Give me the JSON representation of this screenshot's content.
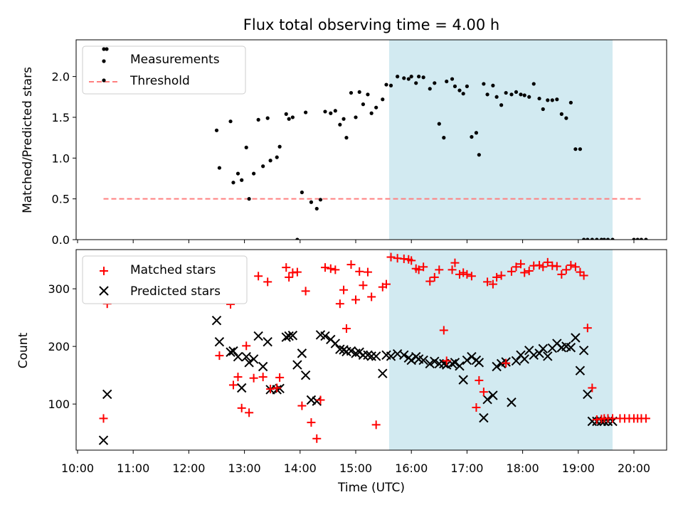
{
  "title": "Flux total observing time = 4.00 h",
  "colors": {
    "measurement": "#000000",
    "threshold": "#ff7f7f",
    "matched": "#ff0000",
    "predicted": "#000000",
    "highlight": "#add8e6"
  },
  "chart_data": [
    {
      "type": "scatter",
      "panel": "top",
      "ylabel": "Matched/Predicted stars",
      "xlabel": "",
      "ylim": [
        0,
        2.45
      ],
      "yticks": [
        0.0,
        0.5,
        1.0,
        1.5,
        2.0
      ],
      "ytick_labels": [
        "0.0",
        "0.5",
        "1.0",
        "1.5",
        "2.0"
      ],
      "legend": {
        "placement": "top-left",
        "entries": [
          "Measurements",
          "Threshold"
        ]
      },
      "highlight_span": {
        "from": "15:36",
        "to": "19:37"
      },
      "threshold": {
        "value": 0.5,
        "from": "10:28",
        "to": "20:08"
      },
      "series": [
        {
          "name": "Measurements",
          "x": [
            "12:30",
            "12:33",
            "12:45",
            "12:48",
            "12:53",
            "12:57",
            "13:02",
            "13:05",
            "13:10",
            "13:15",
            "13:20",
            "13:25",
            "13:28",
            "13:35",
            "13:38",
            "13:45",
            "13:48",
            "13:52",
            "13:57",
            "14:02",
            "14:06",
            "14:12",
            "14:18",
            "14:22",
            "14:27",
            "14:33",
            "14:38",
            "14:43",
            "14:47",
            "14:50",
            "14:55",
            "15:00",
            "15:04",
            "15:08",
            "15:13",
            "15:17",
            "15:22",
            "15:29",
            "15:33",
            "15:38",
            "15:45",
            "15:52",
            "15:57",
            "16:00",
            "16:05",
            "16:08",
            "16:13",
            "16:20",
            "16:25",
            "16:30",
            "16:35",
            "16:38",
            "16:44",
            "16:47",
            "16:52",
            "16:56",
            "17:00",
            "17:05",
            "17:10",
            "17:13",
            "17:18",
            "17:22",
            "17:28",
            "17:32",
            "17:37",
            "17:42",
            "17:48",
            "17:53",
            "17:58",
            "18:02",
            "18:07",
            "18:12",
            "18:18",
            "18:22",
            "18:27",
            "18:32",
            "18:37",
            "18:42",
            "18:47",
            "18:52",
            "18:57",
            "19:02",
            "19:06",
            "19:10",
            "19:15",
            "19:20",
            "19:25",
            "19:28",
            "19:32",
            "19:37",
            "20:00",
            "20:04",
            "20:08",
            "20:13"
          ],
          "values": [
            1.34,
            0.88,
            1.45,
            0.7,
            0.81,
            0.73,
            1.13,
            0.5,
            0.81,
            1.47,
            0.9,
            1.49,
            0.97,
            1.01,
            1.14,
            1.54,
            1.48,
            1.5,
            0.0,
            0.58,
            1.56,
            0.46,
            0.38,
            0.49,
            1.57,
            1.55,
            1.58,
            1.41,
            1.48,
            1.25,
            1.8,
            1.5,
            1.81,
            1.66,
            1.78,
            1.55,
            1.62,
            1.72,
            1.9,
            1.89,
            2.0,
            1.98,
            1.97,
            2.0,
            1.92,
            2.0,
            1.99,
            1.85,
            1.92,
            1.42,
            1.25,
            1.94,
            1.97,
            1.88,
            1.83,
            1.79,
            1.88,
            1.26,
            1.31,
            1.04,
            1.91,
            1.78,
            1.89,
            1.75,
            1.65,
            1.8,
            1.78,
            1.81,
            1.78,
            1.77,
            1.75,
            1.91,
            1.73,
            1.6,
            1.71,
            1.71,
            1.72,
            1.54,
            1.49,
            1.68,
            1.11,
            1.11,
            0.0,
            0.0,
            0.0,
            0.0,
            0.0,
            0.0,
            0.0,
            0.0,
            0.0,
            0.0,
            0.0,
            0.0
          ]
        },
        {
          "name": "Threshold",
          "x": [
            "10:28",
            "20:08"
          ],
          "values": [
            0.5,
            0.5
          ]
        }
      ]
    },
    {
      "type": "scatter",
      "panel": "bottom",
      "xlabel": "Time (UTC)",
      "ylabel": "Count",
      "ylim": [
        20,
        368
      ],
      "yticks": [
        100,
        200,
        300
      ],
      "ytick_labels": [
        "100",
        "200",
        "300"
      ],
      "xticks": [
        "10:00",
        "11:00",
        "12:00",
        "13:00",
        "14:00",
        "15:00",
        "16:00",
        "17:00",
        "18:00",
        "19:00",
        "20:00"
      ],
      "legend": {
        "placement": "top-left",
        "entries": [
          "Matched stars",
          "Predicted stars"
        ]
      },
      "highlight_span": {
        "from": "15:36",
        "to": "19:37"
      },
      "series": [
        {
          "name": "Matched stars",
          "x": [
            "10:28",
            "10:32",
            "12:30",
            "12:33",
            "12:45",
            "12:48",
            "12:53",
            "12:57",
            "13:02",
            "13:05",
            "13:10",
            "13:15",
            "13:20",
            "13:25",
            "13:28",
            "13:35",
            "13:38",
            "13:45",
            "13:48",
            "13:52",
            "13:57",
            "14:02",
            "14:06",
            "14:12",
            "14:18",
            "14:22",
            "14:27",
            "14:33",
            "14:38",
            "14:43",
            "14:47",
            "14:50",
            "14:55",
            "15:00",
            "15:04",
            "15:08",
            "15:13",
            "15:17",
            "15:22",
            "15:29",
            "15:33",
            "15:38",
            "15:45",
            "15:52",
            "15:57",
            "16:00",
            "16:05",
            "16:08",
            "16:13",
            "16:20",
            "16:25",
            "16:30",
            "16:35",
            "16:38",
            "16:44",
            "16:47",
            "16:52",
            "16:56",
            "17:00",
            "17:05",
            "17:10",
            "17:13",
            "17:18",
            "17:22",
            "17:28",
            "17:32",
            "17:37",
            "17:42",
            "17:48",
            "17:53",
            "17:58",
            "18:02",
            "18:07",
            "18:12",
            "18:18",
            "18:22",
            "18:27",
            "18:32",
            "18:37",
            "18:42",
            "18:47",
            "18:52",
            "18:57",
            "19:02",
            "19:06",
            "19:10",
            "19:15",
            "19:20",
            "19:25",
            "19:28",
            "19:32",
            "19:37",
            "19:45",
            "19:50",
            "19:55",
            "20:00",
            "20:04",
            "20:08",
            "20:13"
          ],
          "values": [
            75,
            274,
            333,
            184,
            273,
            133,
            147,
            93,
            201,
            85,
            145,
            322,
            147,
            312,
            126,
            128,
            146,
            337,
            320,
            328,
            329,
            97,
            296,
            68,
            40,
            107,
            337,
            335,
            333,
            274,
            298,
            231,
            342,
            281,
            330,
            306,
            329,
            286,
            64,
            303,
            308,
            355,
            353,
            352,
            351,
            349,
            335,
            333,
            338,
            313,
            320,
            333,
            228,
            175,
            333,
            345,
            325,
            328,
            325,
            322,
            94,
            141,
            121,
            312,
            308,
            320,
            323,
            171,
            330,
            338,
            343,
            328,
            331,
            340,
            341,
            338,
            346,
            340,
            339,
            325,
            333,
            341,
            338,
            329,
            323,
            232,
            128,
            73,
            74,
            75,
            75,
            75,
            75,
            75,
            75,
            75,
            75,
            75,
            75
          ],
          "x_note": ""
        },
        {
          "name": "Predicted stars",
          "x": [
            "10:28",
            "10:32",
            "12:30",
            "12:33",
            "12:45",
            "12:48",
            "12:53",
            "12:57",
            "13:02",
            "13:05",
            "13:10",
            "13:15",
            "13:20",
            "13:25",
            "13:28",
            "13:35",
            "13:38",
            "13:45",
            "13:48",
            "13:52",
            "13:57",
            "14:02",
            "14:06",
            "14:12",
            "14:18",
            "14:22",
            "14:27",
            "14:33",
            "14:38",
            "14:43",
            "14:47",
            "14:50",
            "14:55",
            "15:00",
            "15:04",
            "15:08",
            "15:13",
            "15:17",
            "15:22",
            "15:29",
            "15:33",
            "15:38",
            "15:45",
            "15:52",
            "15:57",
            "16:00",
            "16:05",
            "16:08",
            "16:13",
            "16:20",
            "16:25",
            "16:30",
            "16:35",
            "16:38",
            "16:44",
            "16:47",
            "16:52",
            "16:56",
            "17:00",
            "17:05",
            "17:10",
            "17:13",
            "17:18",
            "17:22",
            "17:28",
            "17:32",
            "17:37",
            "17:42",
            "17:48",
            "17:53",
            "17:58",
            "18:02",
            "18:07",
            "18:12",
            "18:18",
            "18:22",
            "18:27",
            "18:32",
            "18:37",
            "18:42",
            "18:47",
            "18:52",
            "18:57",
            "19:02",
            "19:06",
            "19:10",
            "19:15",
            "19:20",
            "19:25",
            "19:28",
            "19:32",
            "19:37"
          ],
          "values": [
            37,
            117,
            245,
            208,
            190,
            192,
            182,
            128,
            182,
            172,
            178,
            218,
            165,
            208,
            125,
            125,
            127,
            216,
            218,
            219,
            168,
            188,
            150,
            107,
            105,
            220,
            218,
            212,
            205,
            195,
            194,
            191,
            192,
            188,
            190,
            185,
            185,
            183,
            183,
            153,
            185,
            183,
            187,
            185,
            180,
            176,
            182,
            178,
            176,
            170,
            174,
            170,
            170,
            168,
            170,
            172,
            166,
            142,
            176,
            182,
            176,
            172,
            76,
            108,
            115,
            165,
            170,
            173,
            103,
            175,
            185,
            178,
            193,
            185,
            188,
            196,
            183,
            197,
            205,
            198,
            200,
            198,
            215,
            158,
            193,
            117,
            70,
            70,
            70,
            70,
            70,
            70
          ]
        }
      ]
    }
  ]
}
